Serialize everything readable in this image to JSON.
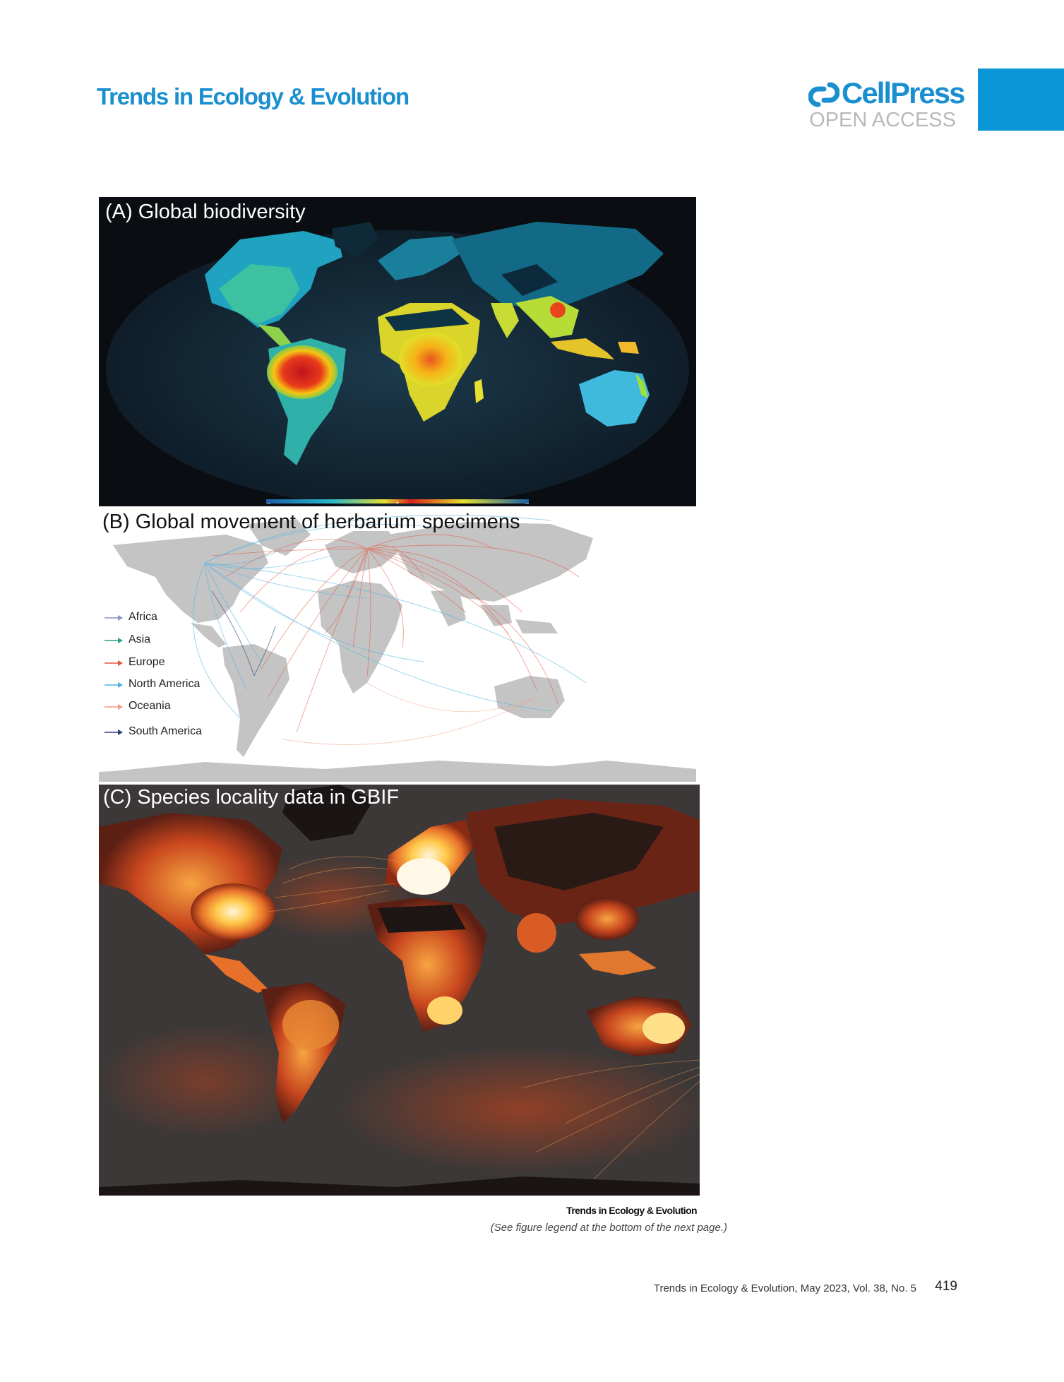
{
  "header": {
    "journal_title": "Trends in Ecology & Evolution",
    "publisher_name": "CellPress",
    "publisher_tagline": "OPEN ACCESS",
    "accent_color": "#1a8fd0",
    "tab_color": "#0a95d6"
  },
  "figure": {
    "panels": [
      {
        "label": "(A) Global biodiversity",
        "colorbar": {
          "left": "–",
          "center": "+",
          "right": "–"
        }
      },
      {
        "label": "(B) Global movement of herbarium specimens"
      },
      {
        "label": "(C) Species locality data in GBIF"
      }
    ],
    "legend": [
      {
        "label": "Africa",
        "color": "#8a93c0"
      },
      {
        "label": "Asia",
        "color": "#2a9e86"
      },
      {
        "label": "Europe",
        "color": "#e5553c"
      },
      {
        "label": "North America",
        "color": "#4fb3e2"
      },
      {
        "label": "Oceania",
        "color": "#f39a80"
      },
      {
        "label": "South America",
        "color": "#2d3f78"
      }
    ],
    "credit": "Trends in Ecology & Evolution",
    "note": "(See figure legend at the bottom of the next page.)"
  },
  "footer": {
    "citation": "Trends in Ecology & Evolution, May 2023, Vol. 38, No. 5",
    "page_number": "419"
  }
}
